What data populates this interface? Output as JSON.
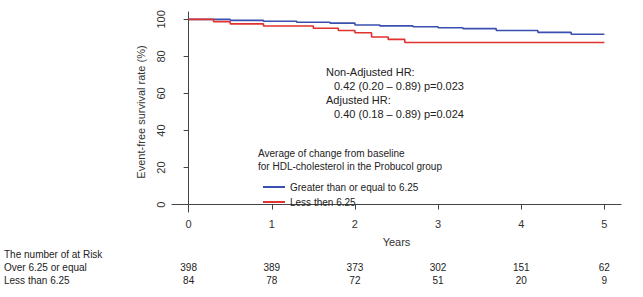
{
  "chart_data": {
    "type": "step",
    "x_label": "Years",
    "y_label": "Event-free survival rate (%)",
    "xlim": [
      -0.2,
      5.2
    ],
    "xticks": [
      0,
      1,
      2,
      3,
      4,
      5
    ],
    "ylim": [
      -4,
      104
    ],
    "yticks": [
      0,
      20,
      40,
      60,
      80,
      100
    ],
    "grid": false,
    "legend": "center",
    "legend_title": [
      "Average of change from baseline",
      "for HDL-cholesterol in the Probucol group"
    ],
    "annotations": [
      "Non-Adjusted HR:",
      "0.42 (0.20 – 0.89) p=0.023",
      "Adjusted HR:",
      "0.40 (0.18 – 0.89) p=0.024"
    ],
    "series": [
      {
        "name": "Greater than or equal to 6.25",
        "color": "#3a4fb0",
        "line_style": "solid",
        "x": [
          0,
          0.5,
          0.9,
          1.3,
          1.7,
          2.0,
          2.3,
          2.7,
          3.0,
          3.3,
          3.7,
          4.2,
          4.6,
          5.0
        ],
        "values": [
          100,
          99.5,
          99,
          98.5,
          98,
          97,
          96.5,
          96,
          95.5,
          95,
          94,
          93,
          92,
          92
        ]
      },
      {
        "name": "Less then 6.25",
        "color": "#e0322f",
        "line_style": "solid",
        "x": [
          0,
          0.3,
          0.5,
          0.9,
          1.5,
          1.8,
          2.0,
          2.2,
          2.4,
          2.6,
          5.0
        ],
        "values": [
          100,
          98.8,
          97.6,
          96.4,
          95.2,
          94,
          92.8,
          90.5,
          89.2,
          87.5,
          87.5
        ]
      }
    ],
    "at_risk": {
      "title": "The number of at Risk",
      "times": [
        0,
        1,
        2,
        3,
        4,
        5
      ],
      "rows": [
        {
          "label": "Over 6.25 or equal",
          "values": [
            398,
            389,
            373,
            302,
            151,
            62
          ]
        },
        {
          "label": "Less than 6.25",
          "values": [
            84,
            78,
            72,
            51,
            20,
            9
          ]
        }
      ]
    }
  }
}
